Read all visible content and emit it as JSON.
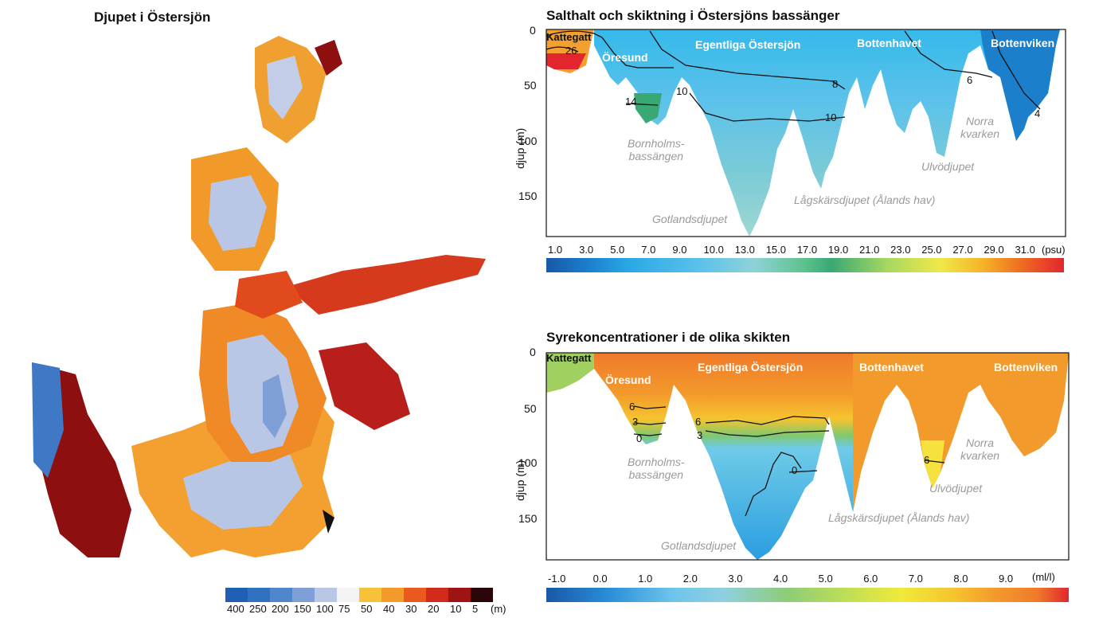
{
  "map": {
    "title": "Djupet i Östersjön",
    "legend_labels": [
      "400",
      "250",
      "200",
      "150",
      "100",
      "75",
      "50",
      "40",
      "30",
      "20",
      "10",
      "5"
    ],
    "legend_unit": "(m)",
    "legend_colors": [
      "#1f5fb4",
      "#2f72c2",
      "#4f86cc",
      "#7fa0d6",
      "#b9c6e6",
      "#f4f4f4",
      "#f7c23a",
      "#f29a2a",
      "#ea5a1e",
      "#d22a1a",
      "#9e1414",
      "#2a0608"
    ]
  },
  "salinity": {
    "title": "Salthalt och skiktning i Östersjöns bassänger",
    "ylabel": "djup (m)",
    "yticks": [
      "0",
      "50",
      "100",
      "150"
    ],
    "basins": [
      "Kattegatt",
      "Öresund",
      "Egentliga Östersjön",
      "Bottenhavet",
      "Bottenviken"
    ],
    "deeps": [
      "Bornholms-",
      "bassängen",
      "Gotlandsdjupet",
      "Lågskärsdjupet (Ålands hav)",
      "Ulvödjupet",
      "Norra",
      "kvarken"
    ],
    "isolines": [
      "26",
      "14",
      "10",
      "10",
      "8",
      "6",
      "4"
    ],
    "colorbar_ticks": [
      "1.0",
      "3.0",
      "5.0",
      "7.0",
      "9.0",
      "10.0",
      "13.0",
      "15.0",
      "17.0",
      "19.0",
      "21.0",
      "23.0",
      "25.0",
      "27.0",
      "29.0",
      "31.0"
    ],
    "colorbar_unit": "(psu)"
  },
  "oxygen": {
    "title": "Syrekoncentrationer i de olika skikten",
    "ylabel": "djup (m)",
    "yticks": [
      "0",
      "50",
      "100",
      "150"
    ],
    "basins": [
      "Kattegatt",
      "Öresund",
      "Egentliga Östersjön",
      "Bottenhavet",
      "Bottenviken"
    ],
    "deeps": [
      "Bornholms-",
      "bassängen",
      "Gotlandsdjupet",
      "Lågskärsdjupet (Ålands hav)",
      "Ulvödjupet",
      "Norra",
      "kvarken"
    ],
    "isolines": [
      "6",
      "3",
      "0",
      "6",
      "3",
      "0",
      "6"
    ],
    "colorbar_ticks": [
      "-1.0",
      "0.0",
      "1.0",
      "2.0",
      "3.0",
      "4.0",
      "5.0",
      "6.0",
      "7.0",
      "8.0",
      "9.0"
    ],
    "colorbar_unit": "(ml/l)"
  }
}
